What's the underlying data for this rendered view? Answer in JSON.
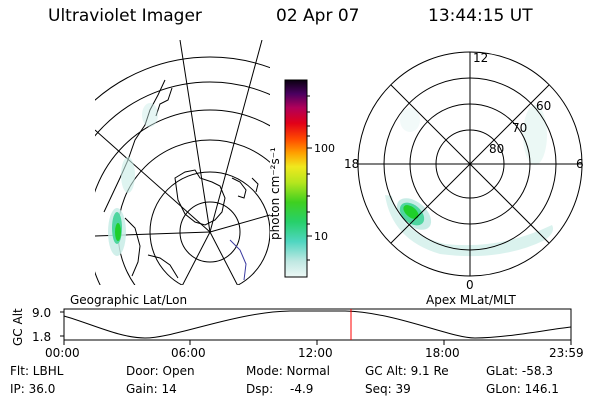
{
  "header": {
    "title": "Ultraviolet Imager",
    "date": "02 Apr 07",
    "time": "13:44:15 UT"
  },
  "colorbar": {
    "label": "photon cm⁻²s⁻¹",
    "tick_labels": [
      "100",
      "10"
    ]
  },
  "polar_plot": {
    "mlt_labels": [
      "12",
      "18",
      "6",
      "0"
    ],
    "mlat_labels": [
      "60",
      "70",
      "80"
    ]
  },
  "captions": {
    "geographic": "Geographic Lat/Lon",
    "apex": "Apex MLat/MLT"
  },
  "altitude_strip": {
    "ylabel": "GC Alt",
    "ymax": "9.0",
    "ymin": "1.8",
    "x_ticks": [
      "00:00",
      "06:00",
      "12:00",
      "18:00",
      "23:59"
    ]
  },
  "info": {
    "flt": "Flt: LBHL",
    "door": "Door: Open",
    "mode": "Mode: Normal",
    "gc_alt": "GC Alt: 9.1 Re",
    "glat": "GLat: -58.3",
    "ip": "IP: 36.0",
    "gain": "Gain: 14",
    "dsp_label": "Dsp:",
    "dsp_value": "-4.9",
    "seq": "Seq: 39",
    "glon": "GLon: 146.1"
  },
  "colors": {
    "emission_low": "#c8ece6",
    "emission_mid": "#4fd6a0",
    "emission_high": "#1fcf2a",
    "marker": "#ff0000"
  }
}
